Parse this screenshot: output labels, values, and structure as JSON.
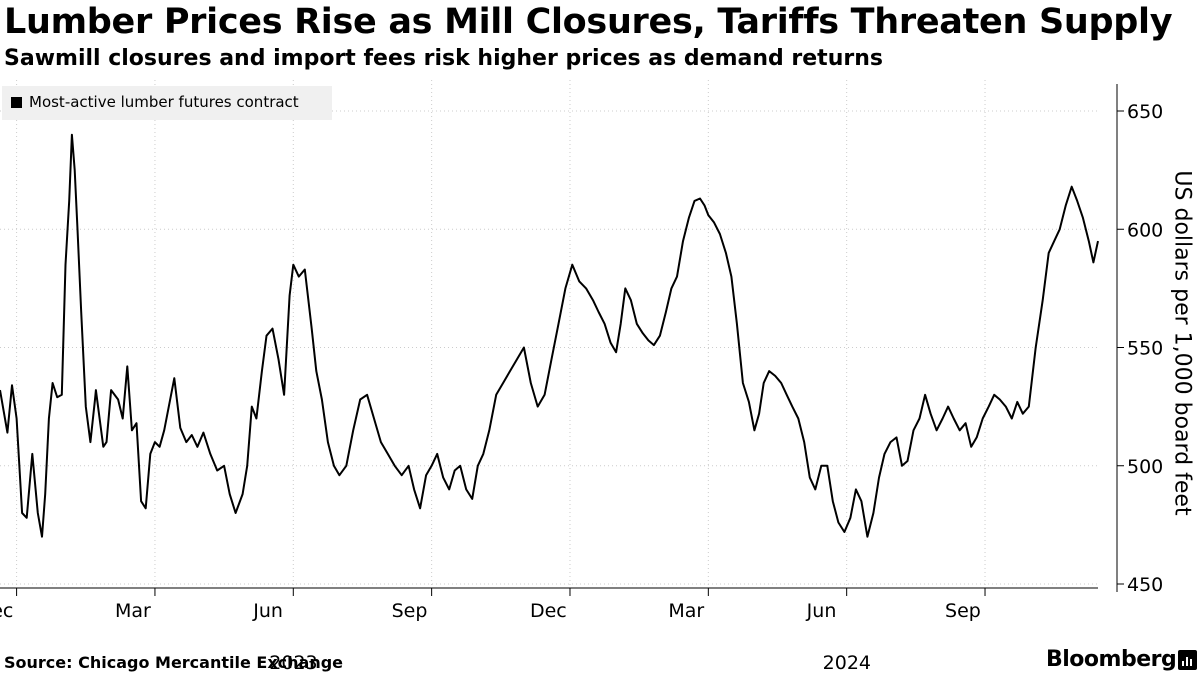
{
  "title": "Lumber Prices Rise as Mill Closures, Tariffs Threaten Supply",
  "subtitle": "Sawmill closures and import fees risk higher prices as demand returns",
  "legend_label": "Most-active lumber futures contract",
  "source": "Source: Chicago Mercantile Exchange",
  "brand": "Bloomberg",
  "brand_icon": "bloomberg-terminal-icon",
  "colors": {
    "line": "#000000",
    "grid": "#cccccc",
    "legend_bg": "#f0f0f0"
  },
  "chart_data": {
    "type": "line",
    "title": "Lumber Prices Rise as Mill Closures, Tariffs Threaten Supply",
    "ylabel": "US dollars per 1,000 board feet",
    "ylim": [
      450,
      650
    ],
    "yticks": [
      450,
      500,
      550,
      600,
      650
    ],
    "grid": true,
    "legend": "top-left",
    "xlim": [
      -0.36,
      23.45
    ],
    "month_ticks": [
      {
        "x": 0,
        "label": "Dec"
      },
      {
        "x": 3,
        "label": "Mar"
      },
      {
        "x": 6,
        "label": "Jun"
      },
      {
        "x": 9,
        "label": "Sep"
      },
      {
        "x": 12,
        "label": "Dec"
      },
      {
        "x": 15,
        "label": "Mar"
      },
      {
        "x": 18,
        "label": "Jun"
      },
      {
        "x": 21,
        "label": "Sep"
      }
    ],
    "year_labels": [
      {
        "x": 6,
        "label": "2023"
      },
      {
        "x": 18,
        "label": "2024"
      }
    ],
    "series": [
      {
        "name": "Most-active lumber futures contract",
        "x": [
          -0.36,
          -0.2,
          -0.1,
          0.0,
          0.12,
          0.22,
          0.34,
          0.46,
          0.55,
          0.62,
          0.7,
          0.78,
          0.88,
          0.98,
          1.06,
          1.14,
          1.2,
          1.26,
          1.32,
          1.4,
          1.5,
          1.6,
          1.7,
          1.72,
          1.8,
          1.88,
          1.95,
          2.05,
          2.2,
          2.3,
          2.4,
          2.5,
          2.6,
          2.7,
          2.8,
          2.9,
          3.0,
          3.1,
          3.2,
          3.3,
          3.42,
          3.55,
          3.68,
          3.8,
          3.92,
          4.05,
          4.2,
          4.35,
          4.5,
          4.62,
          4.75,
          4.9,
          5.0,
          5.1,
          5.2,
          5.32,
          5.42,
          5.55,
          5.68,
          5.8,
          5.92,
          6.0,
          6.12,
          6.25,
          6.4,
          6.5,
          6.62,
          6.75,
          6.88,
          7.0,
          7.15,
          7.3,
          7.45,
          7.6,
          7.75,
          7.9,
          8.05,
          8.2,
          8.35,
          8.5,
          8.62,
          8.75,
          8.88,
          9.0,
          9.12,
          9.25,
          9.38,
          9.5,
          9.62,
          9.75,
          9.88,
          10.0,
          10.12,
          10.25,
          10.4,
          10.55,
          10.7,
          10.85,
          11.0,
          11.15,
          11.3,
          11.45,
          11.6,
          11.75,
          11.9,
          12.05,
          12.2,
          12.35,
          12.5,
          12.62,
          12.75,
          12.88,
          13.0,
          13.1,
          13.2,
          13.32,
          13.45,
          13.58,
          13.7,
          13.82,
          13.95,
          14.08,
          14.2,
          14.32,
          14.45,
          14.58,
          14.7,
          14.82,
          14.92,
          15.0,
          15.12,
          15.25,
          15.38,
          15.5,
          15.62,
          15.75,
          15.88,
          16.0,
          16.1,
          16.2,
          16.32,
          16.45,
          16.58,
          16.7,
          16.82,
          16.95,
          17.08,
          17.2,
          17.32,
          17.45,
          17.58,
          17.7,
          17.82,
          17.95,
          18.08,
          18.2,
          18.32,
          18.45,
          18.58,
          18.7,
          18.82,
          18.95,
          19.08,
          19.2,
          19.32,
          19.45,
          19.58,
          19.7,
          19.82,
          19.95,
          20.08,
          20.2,
          20.32,
          20.45,
          20.58,
          20.7,
          20.82,
          20.95,
          21.08,
          21.2,
          21.32,
          21.45,
          21.58,
          21.7,
          21.82,
          21.95,
          22.1,
          22.25,
          22.38,
          22.5,
          22.62,
          22.75,
          22.88,
          23.0,
          23.12,
          23.25,
          23.35,
          23.45
        ],
        "values": [
          532,
          514,
          534,
          520,
          480,
          478,
          505,
          480,
          470,
          488,
          520,
          535,
          529,
          530,
          585,
          612,
          640,
          625,
          600,
          565,
          525,
          510,
          528,
          532,
          520,
          508,
          510,
          532,
          528,
          520,
          542,
          515,
          518,
          485,
          482,
          505,
          510,
          508,
          515,
          525,
          537,
          516,
          510,
          513,
          508,
          514,
          505,
          498,
          500,
          488,
          480,
          488,
          500,
          525,
          520,
          540,
          555,
          558,
          545,
          530,
          572,
          585,
          580,
          583,
          558,
          540,
          528,
          510,
          500,
          496,
          500,
          515,
          528,
          530,
          520,
          510,
          505,
          500,
          496,
          500,
          490,
          482,
          496,
          500,
          505,
          495,
          490,
          498,
          500,
          490,
          486,
          500,
          505,
          515,
          530,
          535,
          540,
          545,
          550,
          535,
          525,
          530,
          545,
          560,
          575,
          585,
          578,
          575,
          570,
          565,
          560,
          552,
          548,
          560,
          575,
          570,
          560,
          556,
          553,
          551,
          555,
          565,
          575,
          580,
          595,
          605,
          612,
          613,
          610,
          606,
          603,
          598,
          590,
          580,
          560,
          535,
          527,
          515,
          522,
          535,
          540,
          538,
          535,
          530,
          525,
          520,
          510,
          495,
          490,
          500,
          500,
          485,
          476,
          472,
          478,
          490,
          485,
          470,
          480,
          495,
          505,
          510,
          512,
          500,
          502,
          515,
          520,
          530,
          522,
          515,
          520,
          525,
          520,
          515,
          518,
          508,
          512,
          520,
          525,
          530,
          528,
          525,
          520,
          527,
          522,
          525,
          550,
          570,
          590,
          595,
          600,
          610,
          618,
          612,
          605,
          595,
          586,
          595
        ]
      }
    ]
  }
}
